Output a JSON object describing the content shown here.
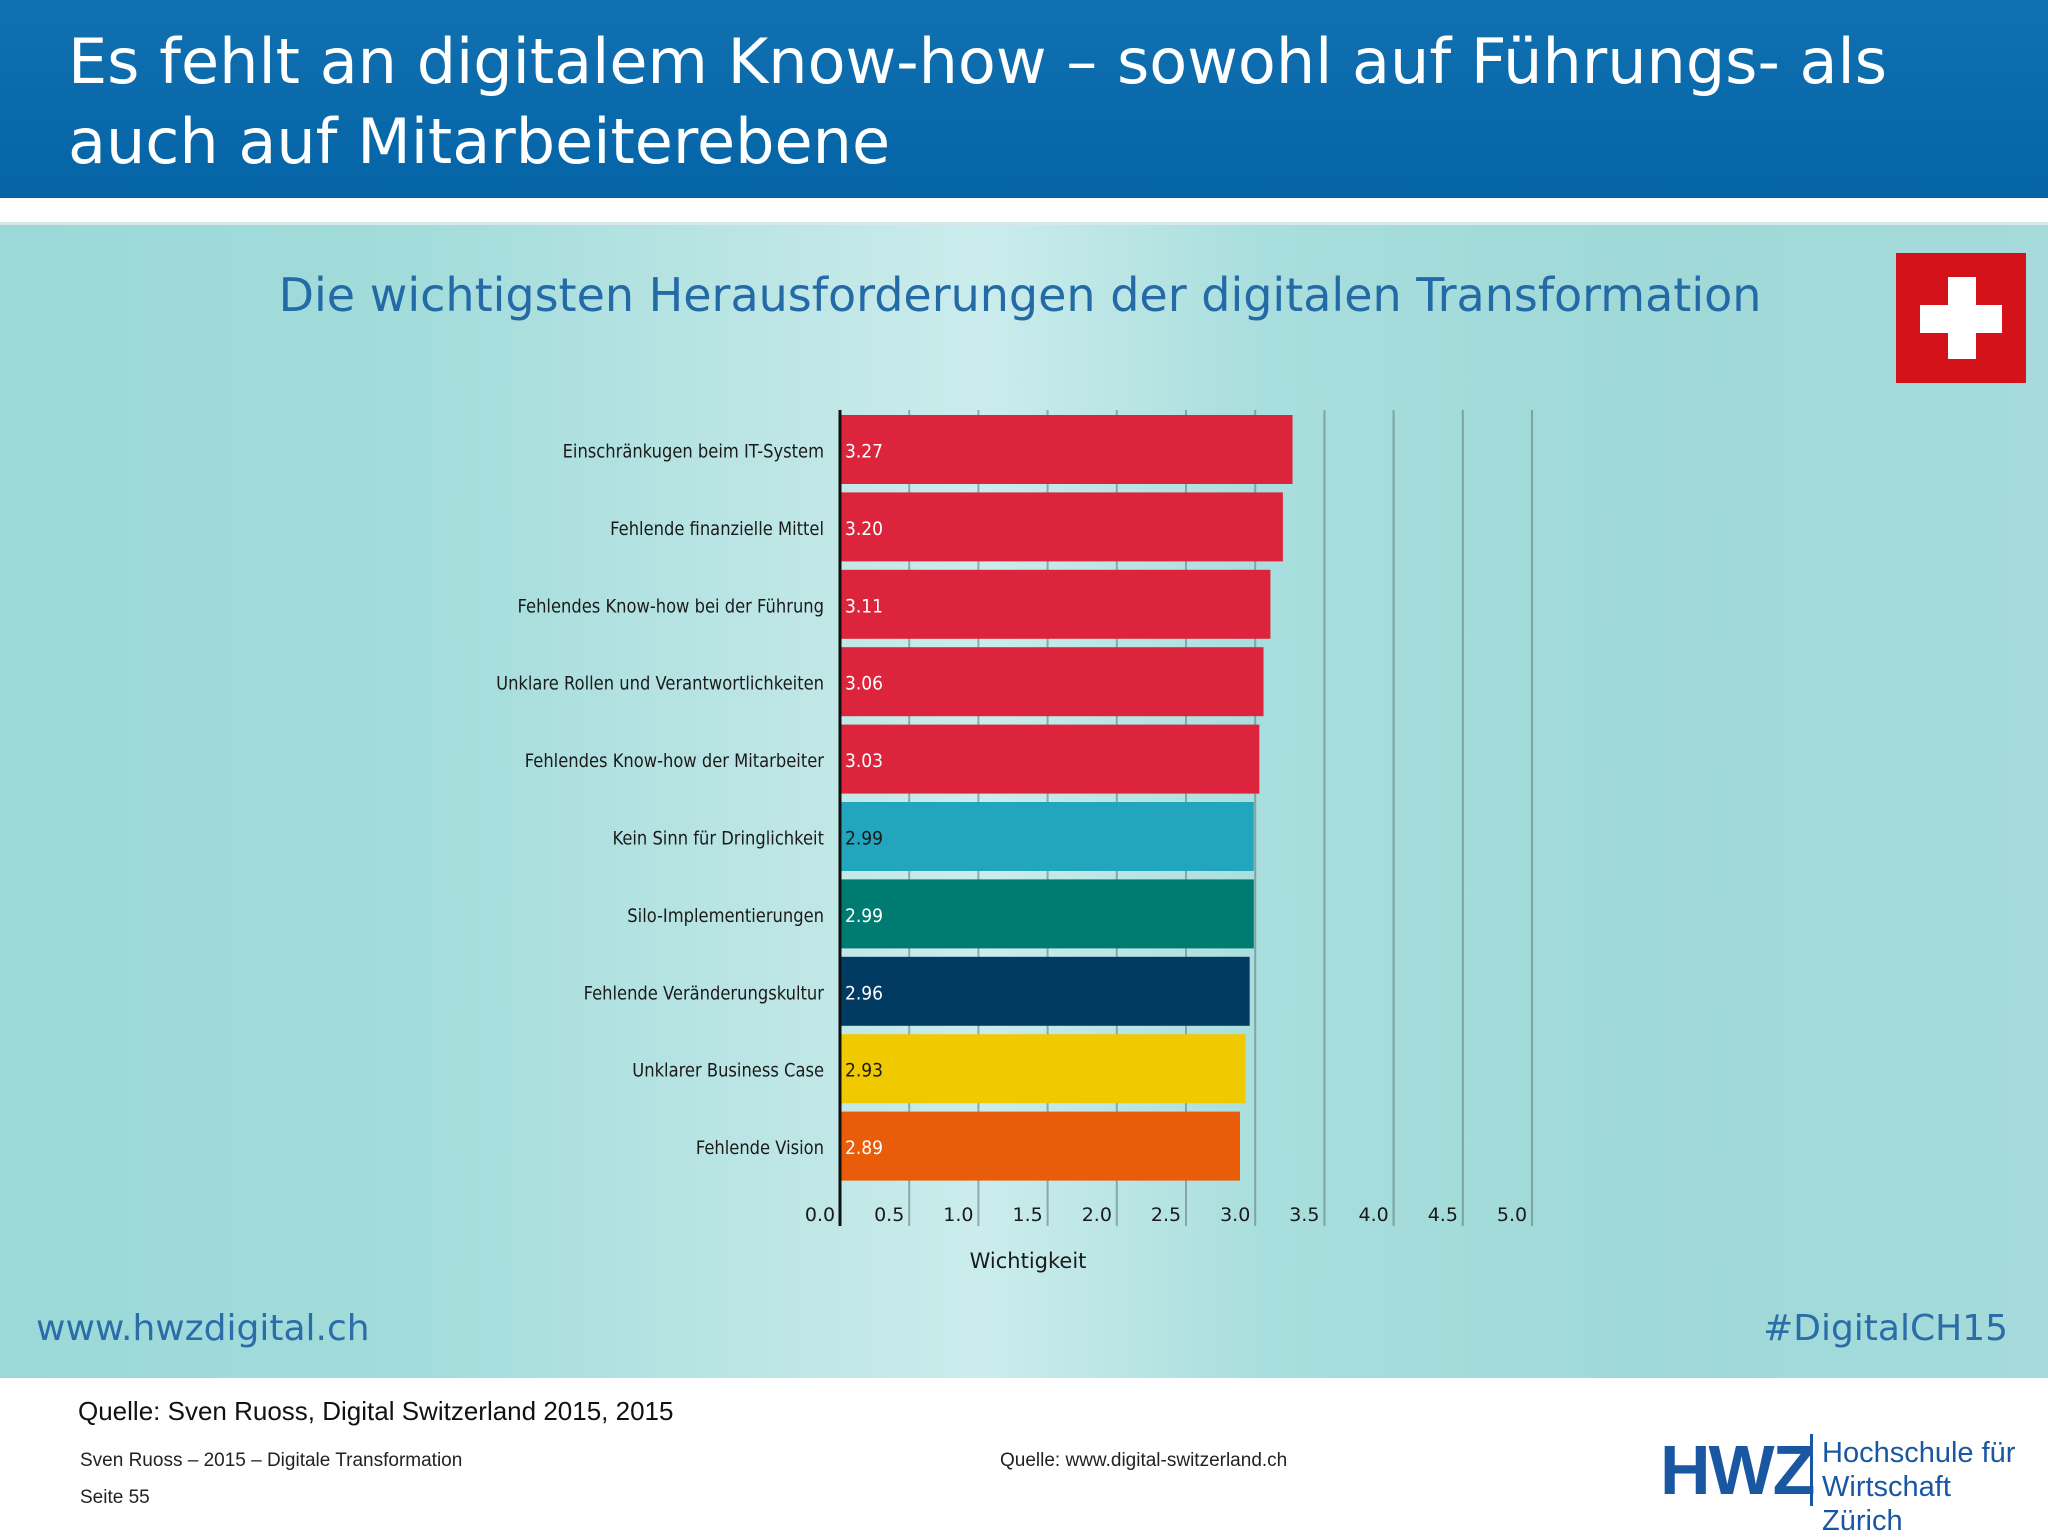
{
  "header": {
    "title": "Es fehlt an digitalem Know-how – sowohl auf Führungs- als auch auf Mitarbeiterebene"
  },
  "panel": {
    "url": "www.hwzdigital.ch",
    "hashtag": "#DigitalCH15",
    "flag_icon": "swiss-flag-icon"
  },
  "chart_data": {
    "type": "bar",
    "orientation": "horizontal",
    "title": "Die wichtigsten Herausforderungen der digitalen Transformation",
    "xlabel": "Wichtigkeit",
    "ylabel": "",
    "xlim": [
      0,
      5
    ],
    "xticks": [
      "0.0",
      "0.5",
      "1.0",
      "1.5",
      "2.0",
      "2.5",
      "3.0",
      "3.5",
      "4.0",
      "4.5",
      "5.0"
    ],
    "grid": true,
    "categories": [
      "Einschränkugen beim IT-System",
      "Fehlende finanzielle Mittel",
      "Fehlendes Know-how bei der Führung",
      "Unklare Rollen und Verantwortlichkeiten",
      "Fehlendes Know-how der Mitarbeiter",
      "Kein Sinn für Dringlichkeit",
      "Silo-Implementierungen",
      "Fehlende Veränderungskultur",
      "Unklarer Business Case",
      "Fehlende Vision"
    ],
    "values": [
      3.27,
      3.2,
      3.11,
      3.06,
      3.03,
      2.99,
      2.99,
      2.96,
      2.93,
      2.89
    ],
    "value_labels": [
      "3.27",
      "3.20",
      "3.11",
      "3.06",
      "3.03",
      "2.99",
      "2.99",
      "2.96",
      "2.93",
      "2.89"
    ],
    "colors": [
      "#dc243c",
      "#dc243c",
      "#dc243c",
      "#dc243c",
      "#dc243c",
      "#22a6be",
      "#007b72",
      "#013b63",
      "#f0c900",
      "#e85c0a"
    ],
    "label_colors": [
      "#ffffff",
      "#ffffff",
      "#ffffff",
      "#ffffff",
      "#ffffff",
      "#1a1a1a",
      "#ffffff",
      "#ffffff",
      "#1a1a1a",
      "#ffffff"
    ]
  },
  "footer": {
    "source_main": "Quelle: Sven Ruoss, Digital Switzerland 2015, 2015",
    "left": "Sven Ruoss – 2015 – Digitale Transformation",
    "page": "Seite 55",
    "source_right": "Quelle: www.digital-switzerland.ch",
    "logo_text": "HWZ",
    "logo_line1": "Hochschule für",
    "logo_line2": "Wirtschaft Zürich"
  }
}
